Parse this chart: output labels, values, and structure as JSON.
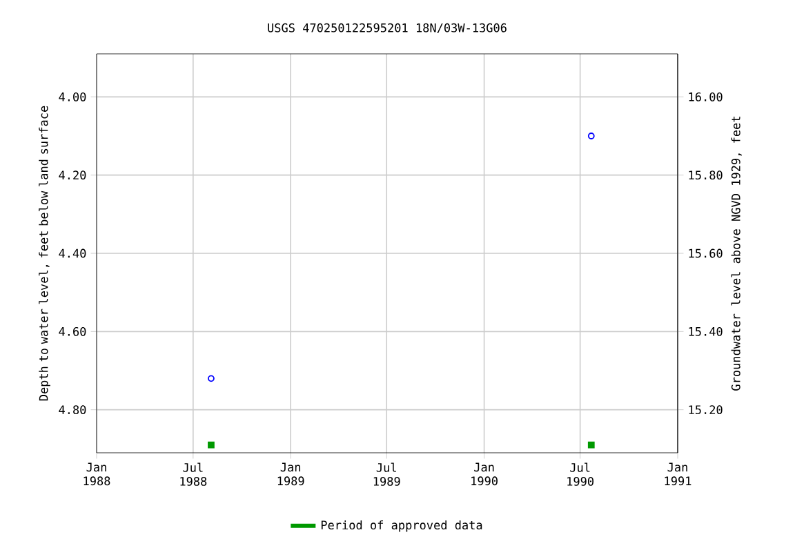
{
  "chart_data": {
    "type": "scatter",
    "title": "USGS 470250122595201 18N/03W-13G06",
    "ylabel": "Depth to water level, feet below land surface",
    "y2label": "Groundwater level above NGVD 1929, feet",
    "xlim": [
      "1988-01-01",
      "1991-01-01"
    ],
    "xticks": [
      {
        "value": "1988-01-01",
        "label": "Jan 1988"
      },
      {
        "value": "1988-07-01",
        "label": "Jul 1988"
      },
      {
        "value": "1989-01-01",
        "label": "Jan 1989"
      },
      {
        "value": "1989-07-01",
        "label": "Jul 1989"
      },
      {
        "value": "1990-01-01",
        "label": "Jan 1990"
      },
      {
        "value": "1990-07-01",
        "label": "Jul 1990"
      },
      {
        "value": "1991-01-01",
        "label": "Jan 1991"
      }
    ],
    "ylim": [
      4.91,
      3.89
    ],
    "yticks": [
      {
        "value": 4.0,
        "label": "4.00"
      },
      {
        "value": 4.2,
        "label": "4.20"
      },
      {
        "value": 4.4,
        "label": "4.40"
      },
      {
        "value": 4.6,
        "label": "4.60"
      },
      {
        "value": 4.8,
        "label": "4.80"
      }
    ],
    "y2lim": [
      15.09,
      16.11
    ],
    "y2ticks": [
      {
        "value": 15.2,
        "label": "15.20"
      },
      {
        "value": 15.4,
        "label": "15.40"
      },
      {
        "value": 15.6,
        "label": "15.60"
      },
      {
        "value": 15.8,
        "label": "15.80"
      },
      {
        "value": 16.0,
        "label": "16.00"
      }
    ],
    "grid": true,
    "legend": "bottom",
    "series": [
      {
        "color": "#0000ff",
        "marker": "circle",
        "x": [
          "1988-08-04",
          "1990-07-22"
        ],
        "values": [
          4.72,
          4.1
        ]
      },
      {
        "name": "Period of approved data",
        "color": "#009900",
        "marker": "square",
        "x": [
          "1988-08-04",
          "1990-07-22"
        ],
        "values": [
          4.89,
          4.89
        ]
      }
    ]
  }
}
